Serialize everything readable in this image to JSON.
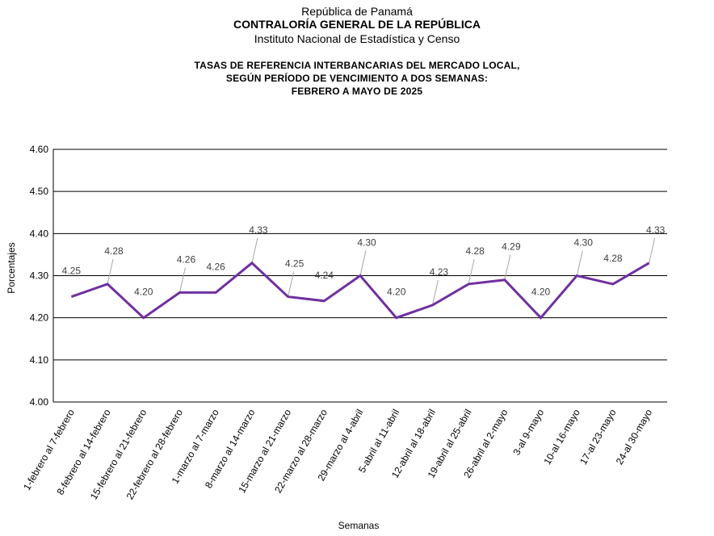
{
  "header": {
    "line1": "República de Panamá",
    "line2": "CONTRALORÍA GENERAL DE LA REPÚBLICA",
    "line3": "Instituto Nacional de Estadística y Censo"
  },
  "chart_data": {
    "type": "line",
    "title_lines": [
      "TASAS DE REFERENCIA INTERBANCARIAS DEL MERCADO LOCAL,",
      "SEGÚN PERÍODO DE VENCIMIENTO A DOS SEMANAS:",
      "FEBRERO A MAYO DE 2025"
    ],
    "xlabel": "Semanas",
    "ylabel": "Porcentajes",
    "ylim": [
      4.0,
      4.6
    ],
    "yticks": [
      "4.00",
      "4.10",
      "4.20",
      "4.30",
      "4.40",
      "4.50",
      "4.60"
    ],
    "grid": true,
    "legend": "none",
    "line_color": "#7030a0",
    "categories": [
      "1-febrero al 7-febrero",
      "8-febrero al 14-febrero",
      "15-febrero al 21-febrero",
      "22-febrero al 28-febrero",
      "1-marzo al 7-marzo",
      "8-marzo al 14-marzo",
      "15-marzo al 21-marzo",
      "22-marzo al 28-marzo",
      "29-marzo al 4-abril",
      "5-abril al 11-abril",
      "12-abril al 18-abril",
      "19-abril al 25-abril",
      "26-abril al 2-mayo",
      "3-al 9-mayo",
      "10-al 16-mayo",
      "17-al 23-mayo",
      "24-al 30-mayo"
    ],
    "values": [
      4.25,
      4.28,
      4.2,
      4.26,
      4.26,
      4.33,
      4.25,
      4.24,
      4.3,
      4.2,
      4.23,
      4.28,
      4.29,
      4.2,
      4.3,
      4.28,
      4.33
    ],
    "data_labels": [
      "4.25",
      "4.28",
      "4.20",
      "4.26",
      "4.26",
      "4.33",
      "4.25",
      "4.24",
      "4.30",
      "4.20",
      "4.23",
      "4.28",
      "4.29",
      "4.20",
      "4.30",
      "4.28",
      "4.33"
    ]
  }
}
